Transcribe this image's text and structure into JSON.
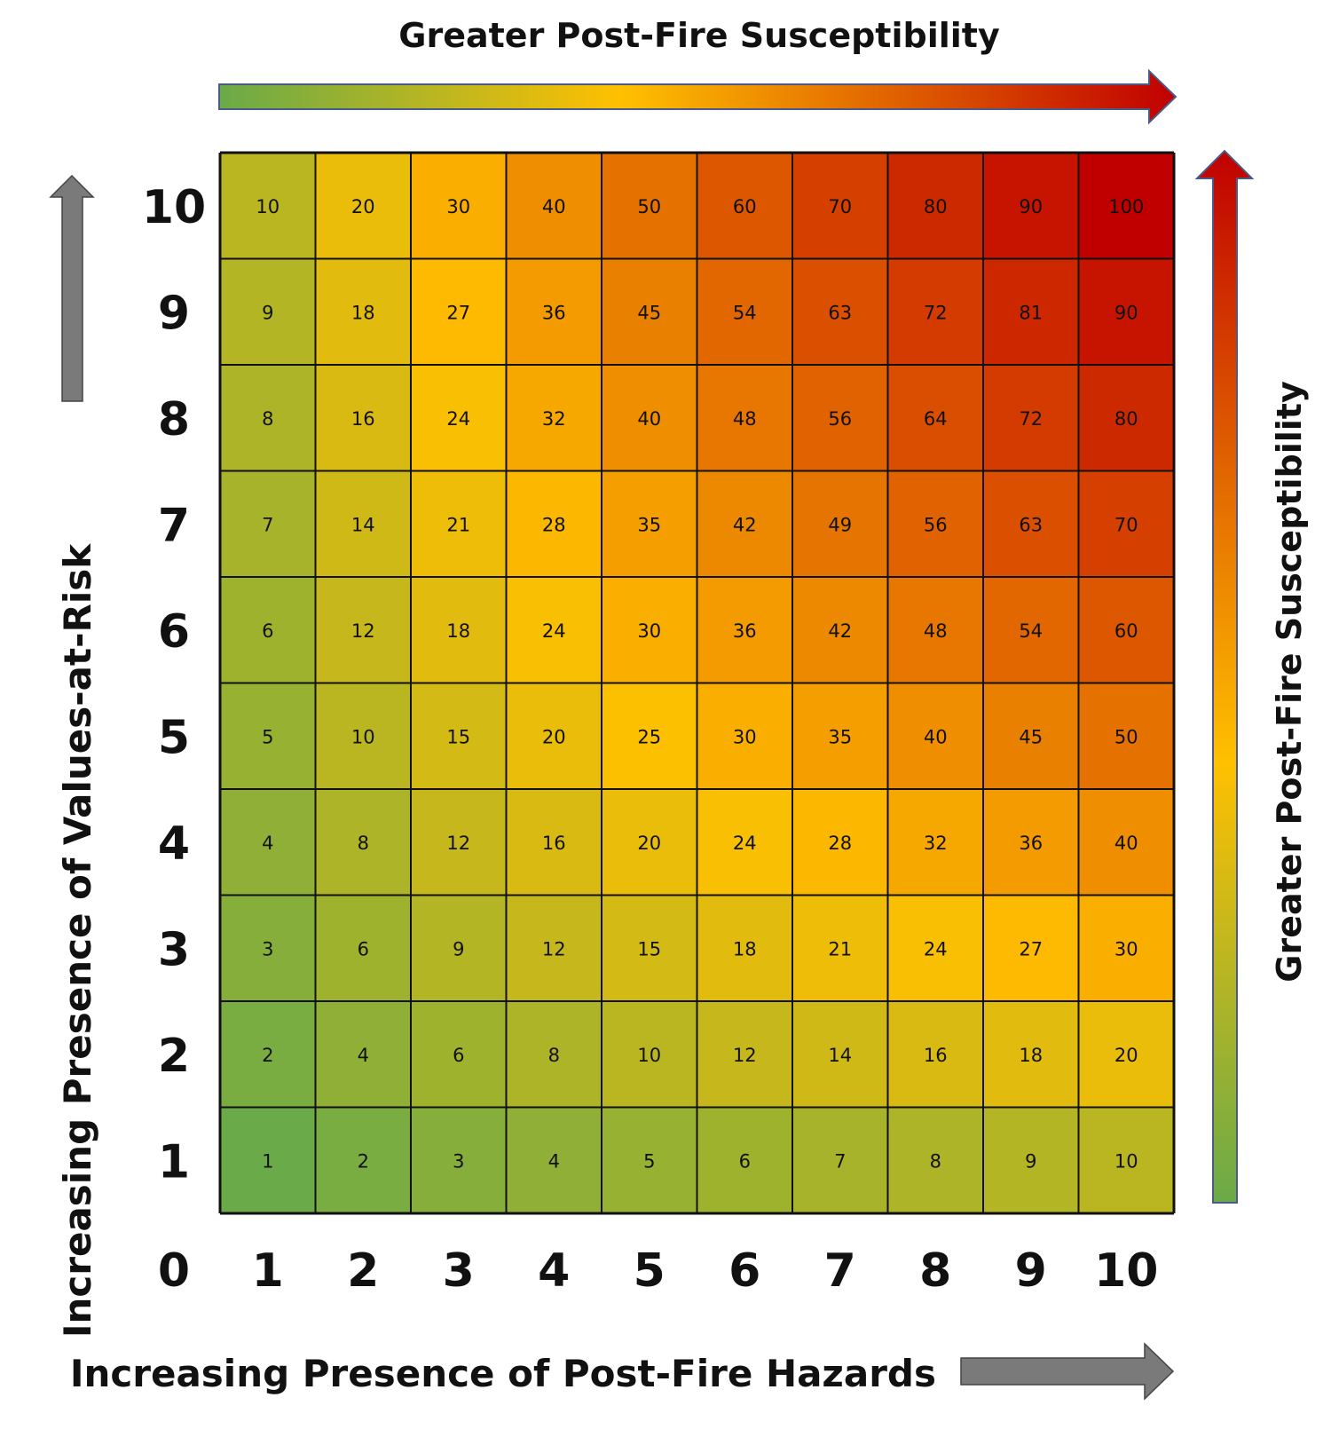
{
  "chart_data": {
    "type": "heatmap",
    "title": "Greater Post-Fire Susceptibility",
    "right_label": "Greater Post-Fire Susceptibility",
    "xlabel": "Increasing Presence of Post-Fire Hazards",
    "ylabel": "Increasing Presence of Values-at-Risk",
    "origin_label": "0",
    "x_ticks": [
      "1",
      "2",
      "3",
      "4",
      "5",
      "6",
      "7",
      "8",
      "9",
      "10"
    ],
    "y_ticks": [
      "1",
      "2",
      "3",
      "4",
      "5",
      "6",
      "7",
      "8",
      "9",
      "10"
    ],
    "x": [
      1,
      2,
      3,
      4,
      5,
      6,
      7,
      8,
      9,
      10
    ],
    "y": [
      1,
      2,
      3,
      4,
      5,
      6,
      7,
      8,
      9,
      10
    ],
    "values": [
      [
        1,
        2,
        3,
        4,
        5,
        6,
        7,
        8,
        9,
        10
      ],
      [
        2,
        4,
        6,
        8,
        10,
        12,
        14,
        16,
        18,
        20
      ],
      [
        3,
        6,
        9,
        12,
        15,
        18,
        21,
        24,
        27,
        30
      ],
      [
        4,
        8,
        12,
        16,
        20,
        24,
        28,
        32,
        36,
        40
      ],
      [
        5,
        10,
        15,
        20,
        25,
        30,
        35,
        40,
        45,
        50
      ],
      [
        6,
        12,
        18,
        24,
        30,
        36,
        42,
        48,
        54,
        60
      ],
      [
        7,
        14,
        21,
        28,
        35,
        42,
        49,
        56,
        63,
        70
      ],
      [
        8,
        16,
        24,
        32,
        40,
        48,
        56,
        64,
        72,
        80
      ],
      [
        9,
        18,
        27,
        36,
        45,
        54,
        63,
        72,
        81,
        90
      ],
      [
        10,
        20,
        30,
        40,
        50,
        60,
        70,
        80,
        90,
        100
      ]
    ],
    "xlim": [
      0,
      10
    ],
    "ylim": [
      0,
      10
    ],
    "grid": true,
    "colors": {
      "low": "#6aaa48",
      "mid": "#ffc000",
      "high": "#c00000",
      "arrow_gray": "#7a7a7a",
      "arrow_outline": "#4a5a8a",
      "grid_line": "#111111"
    },
    "icons": {
      "up_arrow": "gray-up-arrow-icon",
      "right_arrow": "gray-right-arrow-icon",
      "gradient_right_arrow": "gradient-right-arrow-icon",
      "gradient_up_arrow": "gradient-up-arrow-icon"
    }
  }
}
